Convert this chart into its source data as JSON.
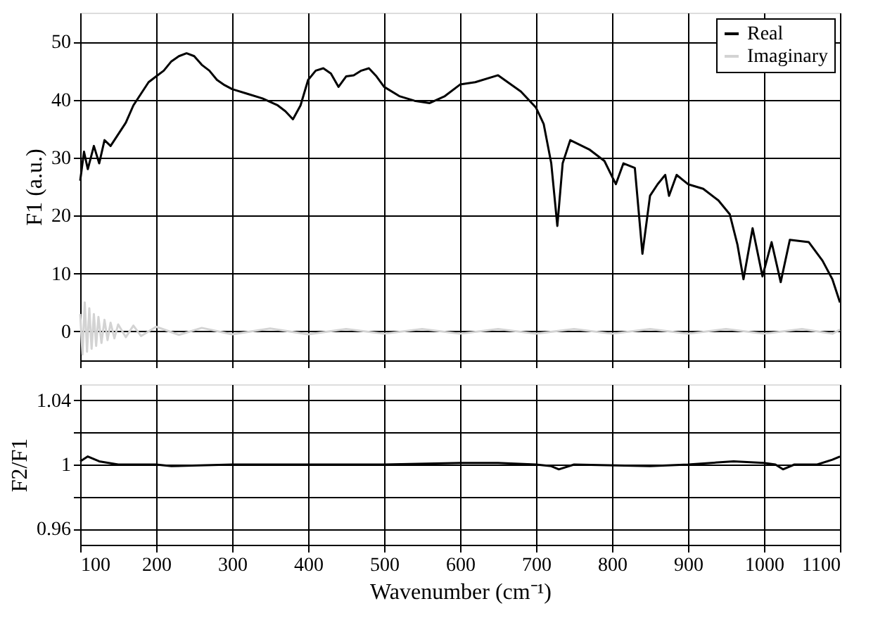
{
  "chart_data": [
    {
      "type": "line",
      "ylabel": "F1 (a.u.)",
      "xlim": [
        100,
        1100
      ],
      "xticks": [
        100,
        200,
        300,
        400,
        500,
        600,
        700,
        800,
        900,
        1000,
        1100
      ],
      "ylim": [
        -5,
        55
      ],
      "yticks": [
        0,
        10,
        20,
        30,
        40,
        50
      ],
      "grid": true,
      "legend": "top right",
      "tick_labels": "y",
      "line_style": "solid",
      "marker": "none",
      "series": [
        {
          "name": "Real",
          "color": "#000000",
          "x": [
            100,
            105,
            110,
            118,
            125,
            132,
            140,
            150,
            160,
            170,
            180,
            190,
            200,
            210,
            220,
            230,
            240,
            250,
            260,
            270,
            280,
            290,
            300,
            320,
            340,
            360,
            370,
            380,
            390,
            400,
            410,
            420,
            430,
            440,
            450,
            460,
            470,
            480,
            490,
            500,
            520,
            540,
            560,
            580,
            600,
            620,
            650,
            680,
            700,
            710,
            720,
            728,
            735,
            745,
            770,
            790,
            805,
            815,
            830,
            840,
            850,
            860,
            870,
            875,
            885,
            900,
            920,
            940,
            955,
            965,
            973,
            985,
            998,
            1010,
            1022,
            1034,
            1059,
            1077,
            1090,
            1100
          ],
          "values": [
            26,
            31,
            28,
            32,
            29,
            33,
            32,
            34,
            36,
            39,
            41,
            43,
            44,
            45,
            46.6,
            47.5,
            48,
            47.5,
            46,
            45,
            43.4,
            42.5,
            41.8,
            41,
            40.2,
            39,
            38,
            36.6,
            39,
            43.4,
            45,
            45.4,
            44.5,
            42.2,
            44,
            44.2,
            45,
            45.4,
            44,
            42.2,
            40.6,
            39.8,
            39.4,
            40.6,
            42.6,
            43,
            44.2,
            41.4,
            38.6,
            35.8,
            29,
            18.2,
            29,
            33,
            31.4,
            29.4,
            25.4,
            29,
            28.2,
            13.4,
            23.4,
            25.4,
            27,
            23.4,
            27,
            25.4,
            24.6,
            22.6,
            20.2,
            15,
            9,
            17.8,
            9.5,
            15.4,
            8.5,
            15.8,
            15.4,
            12.2,
            9,
            5
          ]
        },
        {
          "name": "Imaginary",
          "color": "#d3d3d3",
          "x": [
            100,
            103,
            106,
            109,
            112,
            115,
            118,
            121,
            124,
            128,
            132,
            136,
            140,
            145,
            150,
            160,
            170,
            180,
            200,
            230,
            260,
            300,
            350,
            400,
            450,
            500,
            550,
            600,
            650,
            700,
            750,
            800,
            850,
            900,
            950,
            1000,
            1050,
            1090,
            1100
          ],
          "values": [
            3,
            -4,
            5,
            -3.5,
            4,
            -3,
            3,
            -2.5,
            2.5,
            -2,
            2,
            -1.5,
            1.5,
            -1.2,
            1.2,
            -1,
            1,
            -0.8,
            0.8,
            -0.6,
            0.6,
            -0.5,
            0.5,
            -0.5,
            0.4,
            -0.4,
            0.4,
            -0.4,
            0.4,
            -0.4,
            0.4,
            -0.4,
            0.4,
            -0.4,
            0.4,
            -0.4,
            0.4,
            -0.4,
            0.3
          ]
        }
      ]
    },
    {
      "type": "line",
      "xlabel": "Wavenumber (cm⁻¹)",
      "ylabel": "F2/F1",
      "xlim": [
        100,
        1100
      ],
      "xticks": [
        100,
        200,
        300,
        400,
        500,
        600,
        700,
        800,
        900,
        1000,
        1100
      ],
      "ylim": [
        0.95,
        1.05
      ],
      "yticks": [
        0.96,
        {
          "value": 0.98,
          "label": null
        },
        1,
        {
          "value": 1.02,
          "label": null
        },
        1.04
      ],
      "grid": true,
      "line_style": "solid",
      "marker": "none",
      "series": [
        {
          "color": "#000000",
          "x": [
            100,
            110,
            125,
            150,
            200,
            220,
            300,
            400,
            500,
            600,
            650,
            700,
            720,
            730,
            750,
            850,
            900,
            960,
            1000,
            1015,
            1025,
            1040,
            1070,
            1090,
            1100
          ],
          "values": [
            1.002,
            1.005,
            1.002,
            1.0,
            1.0,
            0.999,
            1.0,
            1.0,
            1.0,
            1.001,
            1.001,
            1.0,
            0.999,
            0.997,
            1.0,
            0.999,
            1.0,
            1.002,
            1.001,
            1.0,
            0.997,
            1.0,
            1.0,
            1.003,
            1.005
          ]
        }
      ]
    }
  ]
}
